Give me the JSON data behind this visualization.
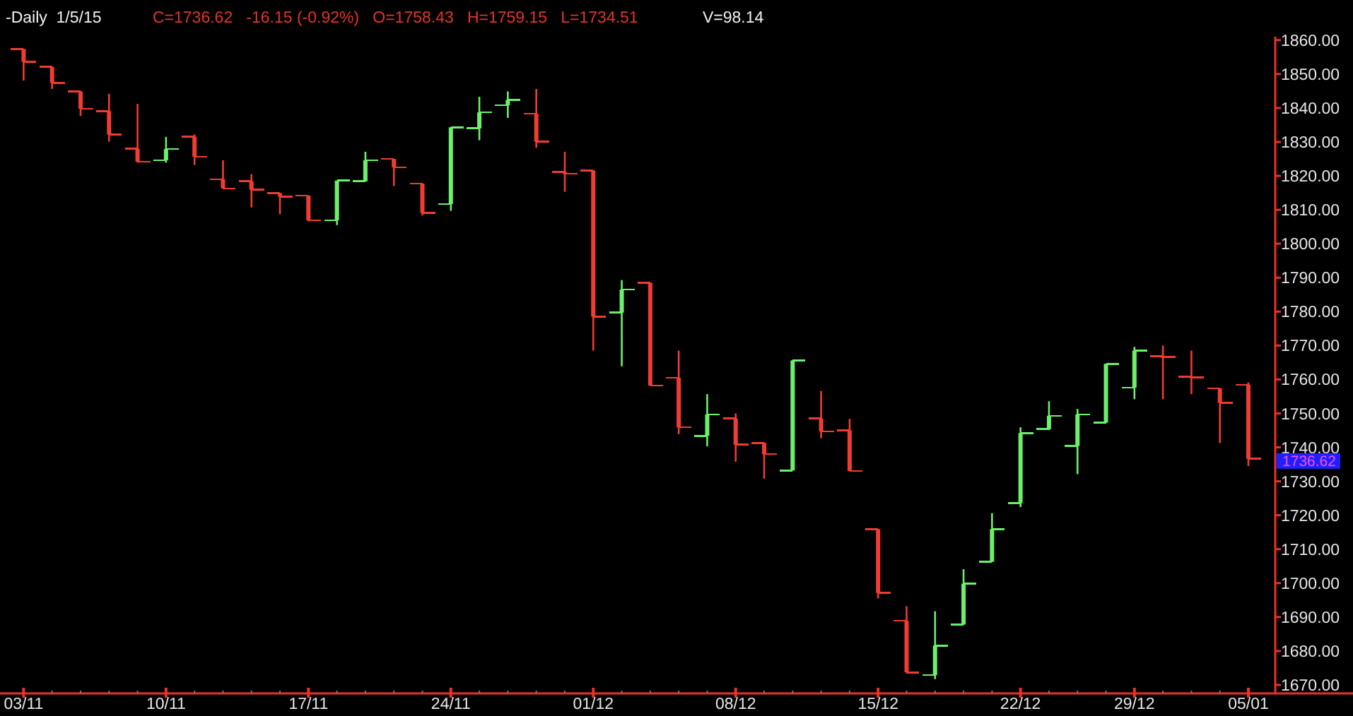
{
  "chart_data": {
    "type": "candlestick",
    "title": "-Daily  1/5/15",
    "subtitle": "C=1736.62   -16.15 (-0.92%)   O=1758.43   H=1759.15   L=1734.51",
    "annotations": [
      "V=98.14",
      "1736.62"
    ],
    "categories": [
      "03/11",
      null,
      null,
      null,
      null,
      "10/11",
      null,
      null,
      null,
      null,
      "17/11",
      null,
      null,
      null,
      null,
      "24/11",
      null,
      null,
      null,
      null,
      "01/12",
      null,
      null,
      null,
      null,
      "08/12",
      null,
      null,
      null,
      null,
      "15/12",
      null,
      null,
      null,
      null,
      "22/12",
      null,
      null,
      null,
      "29/12",
      null,
      null,
      null,
      "05/01"
    ],
    "ohlc": [
      [
        1857.4,
        1857.4,
        1848.1,
        1853.6
      ],
      [
        1852.1,
        1852.1,
        1845.6,
        1847.4
      ],
      [
        1844.9,
        1844.9,
        1837.7,
        1839.8
      ],
      [
        1839.1,
        1844.2,
        1830.1,
        1832.2
      ],
      [
        1828.0,
        1841.2,
        1823.9,
        1824.2
      ],
      [
        1824.6,
        1831.5,
        1823.9,
        1827.9
      ],
      [
        1831.5,
        1832.2,
        1823.2,
        1825.6
      ],
      [
        1819.0,
        1824.6,
        1816.3,
        1816.3
      ],
      [
        1818.4,
        1820.5,
        1810.7,
        1815.9
      ],
      [
        1814.9,
        1814.9,
        1808.7,
        1813.9
      ],
      [
        1814.2,
        1814.2,
        1806.6,
        1806.9
      ],
      [
        1806.9,
        1818.6,
        1805.5,
        1818.6
      ],
      [
        1818.4,
        1827.1,
        1818.4,
        1824.6
      ],
      [
        1825.0,
        1825.0,
        1817.0,
        1822.5
      ],
      [
        1817.7,
        1817.7,
        1808.3,
        1809.1
      ],
      [
        1811.7,
        1834.3,
        1809.7,
        1834.3
      ],
      [
        1834.0,
        1843.3,
        1830.5,
        1838.7
      ],
      [
        1840.8,
        1844.9,
        1837.1,
        1842.4
      ],
      [
        1838.3,
        1845.6,
        1828.3,
        1830.1
      ],
      [
        1821.2,
        1827.1,
        1815.3,
        1820.6
      ],
      [
        1821.6,
        1821.6,
        1768.5,
        1778.5
      ],
      [
        1779.7,
        1789.3,
        1763.9,
        1786.5
      ],
      [
        1788.5,
        1788.5,
        1758.2,
        1758.2
      ],
      [
        1760.5,
        1768.5,
        1743.9,
        1745.9
      ],
      [
        1743.4,
        1755.7,
        1740.3,
        1749.7
      ],
      [
        1748.5,
        1750.0,
        1735.8,
        1740.8
      ],
      [
        1741.3,
        1741.5,
        1730.8,
        1738.0
      ],
      [
        1733.2,
        1765.6,
        1733.2,
        1765.6
      ],
      [
        1748.5,
        1756.6,
        1742.7,
        1744.7
      ],
      [
        1745.0,
        1748.4,
        1733.0,
        1733.0
      ],
      [
        1715.9,
        1715.9,
        1695.5,
        1697.1
      ],
      [
        1688.9,
        1693.2,
        1673.7,
        1673.7
      ],
      [
        1672.9,
        1691.7,
        1671.7,
        1681.6
      ],
      [
        1687.8,
        1704.1,
        1687.8,
        1699.8
      ],
      [
        1706.3,
        1720.6,
        1706.3,
        1715.9
      ],
      [
        1723.6,
        1745.9,
        1722.4,
        1744.2
      ],
      [
        1745.4,
        1753.6,
        1745.1,
        1749.3
      ],
      [
        1740.4,
        1751.3,
        1732.1,
        1749.7
      ],
      [
        1747.3,
        1764.6,
        1747.3,
        1764.6
      ],
      [
        1757.6,
        1769.6,
        1754.2,
        1768.5
      ],
      [
        1766.8,
        1770.0,
        1754.2,
        1766.6
      ],
      [
        1760.8,
        1768.5,
        1755.7,
        1760.6
      ],
      [
        1757.4,
        1757.4,
        1741.3,
        1753.1
      ],
      [
        1758.43,
        1759.15,
        1734.51,
        1736.62
      ]
    ],
    "colors": [
      "#f03c32",
      "#f03c32",
      "#f03c32",
      "#f03c32",
      "#f03c32",
      "#6cf06c",
      "#f03c32",
      "#f03c32",
      "#f03c32",
      "#f03c32",
      "#f03c32",
      "#6cf06c",
      "#6cf06c",
      "#f03c32",
      "#f03c32",
      "#6cf06c",
      "#6cf06c",
      "#6cf06c",
      "#f03c32",
      "#f03c32",
      "#f03c32",
      "#6cf06c",
      "#f03c32",
      "#f03c32",
      "#6cf06c",
      "#f03c32",
      "#f03c32",
      "#6cf06c",
      "#f03c32",
      "#f03c32",
      "#f03c32",
      "#f03c32",
      "#6cf06c",
      "#6cf06c",
      "#6cf06c",
      "#6cf06c",
      "#6cf06c",
      "#6cf06c",
      "#6cf06c",
      "#6cf06c",
      "#f03c32",
      "#f03c32",
      "#f03c32",
      "#f03c32"
    ],
    "ylim": [
      1667.5,
      1861
    ],
    "yticks": [
      {
        "value": 1670,
        "label": "1670.00"
      },
      {
        "value": 1680,
        "label": "1680.00"
      },
      {
        "value": 1690,
        "label": "1690.00"
      },
      {
        "value": 1700,
        "label": "1700.00"
      },
      {
        "value": 1710,
        "label": "1710.00"
      },
      {
        "value": 1720,
        "label": "1720.00"
      },
      {
        "value": 1730,
        "label": "1730.00"
      },
      {
        "value": 1740,
        "label": "1740.00"
      },
      {
        "value": 1750,
        "label": "1750.00"
      },
      {
        "value": 1760,
        "label": "1760.00"
      },
      {
        "value": 1770,
        "label": "1770.00"
      },
      {
        "value": 1780,
        "label": "1780.00"
      },
      {
        "value": 1790,
        "label": "1790.00"
      },
      {
        "value": 1800,
        "label": "1800.00"
      },
      {
        "value": 1810,
        "label": "1810.00"
      },
      {
        "value": 1820,
        "label": "1820.00"
      },
      {
        "value": 1830,
        "label": "1830.00"
      },
      {
        "value": 1840,
        "label": "1840.00"
      },
      {
        "value": 1850,
        "label": "1850.00"
      },
      {
        "value": 1860,
        "label": "1860.00"
      }
    ],
    "grid": false
  }
}
